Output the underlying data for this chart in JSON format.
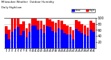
{
  "title": "Milwaukee Weather  Outdoor Humidity",
  "subtitle": "Daily High/Low",
  "high_color": "#ff0000",
  "low_color": "#0000ff",
  "background_color": "#ffffff",
  "grid_color": "#c0c0c0",
  "ylim": [
    0,
    100
  ],
  "yticks": [
    20,
    40,
    60,
    80,
    100
  ],
  "n_bars": 31,
  "high_values": [
    72,
    60,
    98,
    99,
    99,
    80,
    88,
    65,
    82,
    99,
    99,
    92,
    90,
    78,
    99,
    96,
    88,
    84,
    94,
    90,
    80,
    74,
    70,
    58,
    94,
    88,
    80,
    74,
    68,
    90,
    84
  ],
  "low_values": [
    48,
    30,
    55,
    64,
    70,
    42,
    56,
    36,
    54,
    74,
    76,
    60,
    64,
    50,
    72,
    70,
    56,
    52,
    66,
    60,
    50,
    46,
    44,
    28,
    64,
    56,
    50,
    46,
    40,
    60,
    54
  ],
  "xlabels": [
    "1",
    "2",
    "3",
    "4",
    "5",
    "6",
    "7",
    "8",
    "9",
    "10",
    "11",
    "12",
    "13",
    "14",
    "15",
    "16",
    "17",
    "18",
    "19",
    "20",
    "21",
    "22",
    "23",
    "24",
    "25",
    "26",
    "27",
    "28",
    "29",
    "30",
    "31"
  ]
}
